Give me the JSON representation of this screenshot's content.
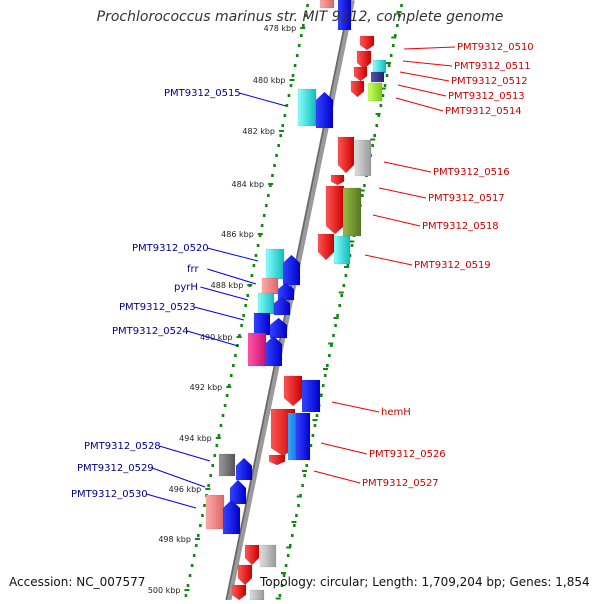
{
  "title": "Prochlorococcus marinus str. MIT 9312, complete genome",
  "footer": {
    "accession": "Accession: NC_007577",
    "topology": "Topology: circular; Length: 1,709,204 bp; Genes: 1,854"
  },
  "ticks": [
    "478 kbp",
    "480 kbp",
    "482 kbp",
    "484 kbp",
    "486 kbp",
    "488 kbp",
    "490 kbp",
    "492 kbp",
    "494 kbp",
    "496 kbp",
    "498 kbp",
    "500 kbp"
  ],
  "labels_forward": [
    "PMT9312_0515",
    "PMT9312_0520",
    "frr",
    "pyrH",
    "PMT9312_0523",
    "PMT9312_0524",
    "PMT9312_0528",
    "PMT9312_0529",
    "PMT9312_0530"
  ],
  "labels_reverse": [
    "PMT9312_0510",
    "PMT9312_0511",
    "PMT9312_0512",
    "PMT9312_0513",
    "PMT9312_0514",
    "PMT9312_0516",
    "PMT9312_0517",
    "PMT9312_0518",
    "PMT9312_0519",
    "hemH",
    "PMT9312_0526",
    "PMT9312_0527"
  ],
  "colors": {
    "forward_label": "#00008b",
    "reverse_label": "#cc0000",
    "backbone": "#888888",
    "tick_mark": "#118811",
    "gene_red": "#ee0000",
    "gene_blue": "#0000ee",
    "gene_cyan": "#22dddd",
    "gene_pink": "#ee8888",
    "gene_grey": "#aaaaaa",
    "gene_olive": "#779933",
    "gene_magenta": "#ee2288",
    "gene_lime": "#99ee22",
    "gene_navy": "#333388"
  }
}
